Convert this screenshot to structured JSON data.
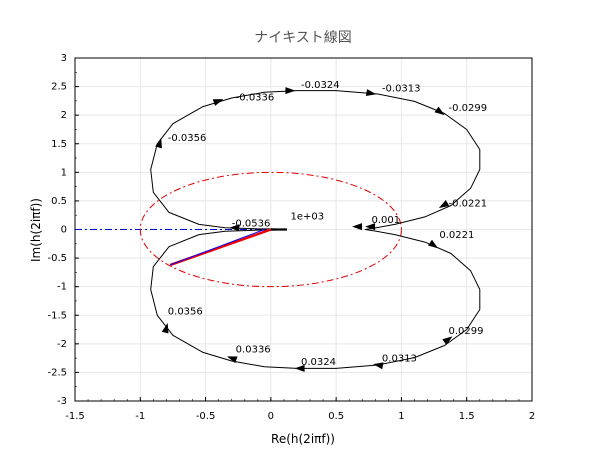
{
  "chart_data": {
    "type": "line",
    "title": "ナイキスト線図",
    "xlabel": "Re(h(2iπf))",
    "ylabel": "Im(h(2iπf))",
    "xlim": [
      -1.5,
      2
    ],
    "ylim": [
      -3,
      3
    ],
    "xticks": [
      -1.5,
      -1,
      -0.5,
      0,
      0.5,
      1,
      1.5,
      2
    ],
    "yticks": [
      -3,
      -2.5,
      -2,
      -1.5,
      -1,
      -0.5,
      0,
      0.5,
      1,
      1.5,
      2,
      2.5,
      3
    ],
    "grid": true,
    "series": [
      {
        "color": "#000000",
        "style": "solid",
        "values_description": "nyquist curve (positive and negative frequency branches)"
      },
      {
        "color": "#dd0000",
        "style": "dash-dot",
        "values_description": "unit circle"
      },
      {
        "color": "#0000cc",
        "style": "dash-dot",
        "values_description": "reference line from -1.5 to 0 at Im=0"
      }
    ],
    "frequency_labels": [
      {
        "text": "-0.0324",
        "x": 0.2,
        "y": 2.42
      },
      {
        "text": "-0.0313",
        "x": 0.82,
        "y": 2.36
      },
      {
        "text": "-0.0336",
        "x": -0.3,
        "y": 2.2
      },
      {
        "text": "-0.0299",
        "x": 1.33,
        "y": 2.02
      },
      {
        "text": "-0.0356",
        "x": -0.82,
        "y": 1.5
      },
      {
        "text": "-0.0221",
        "x": 1.33,
        "y": 0.35
      },
      {
        "text": "0.001",
        "x": 0.74,
        "y": 0.06
      },
      {
        "text": "1e+03",
        "x": 0.12,
        "y": 0.12
      },
      {
        "text": "-0.0536",
        "x": -0.33,
        "y": 0.0
      },
      {
        "text": "0.0221",
        "x": 1.26,
        "y": -0.2
      },
      {
        "text": "0.0356",
        "x": -0.82,
        "y": -1.54
      },
      {
        "text": "0.0299",
        "x": 1.33,
        "y": -1.88
      },
      {
        "text": "0.0336",
        "x": -0.3,
        "y": -2.2
      },
      {
        "text": "0.0313",
        "x": 0.82,
        "y": -2.36
      },
      {
        "text": "0.0324",
        "x": 0.2,
        "y": -2.42
      }
    ]
  },
  "colors": {
    "curve": "#000000",
    "circle": "#dd0000",
    "blue_line": "#0000cc",
    "vector_red": "#ee0000",
    "vector_blue": "#0000ff",
    "grid": "#e8e8e8"
  }
}
